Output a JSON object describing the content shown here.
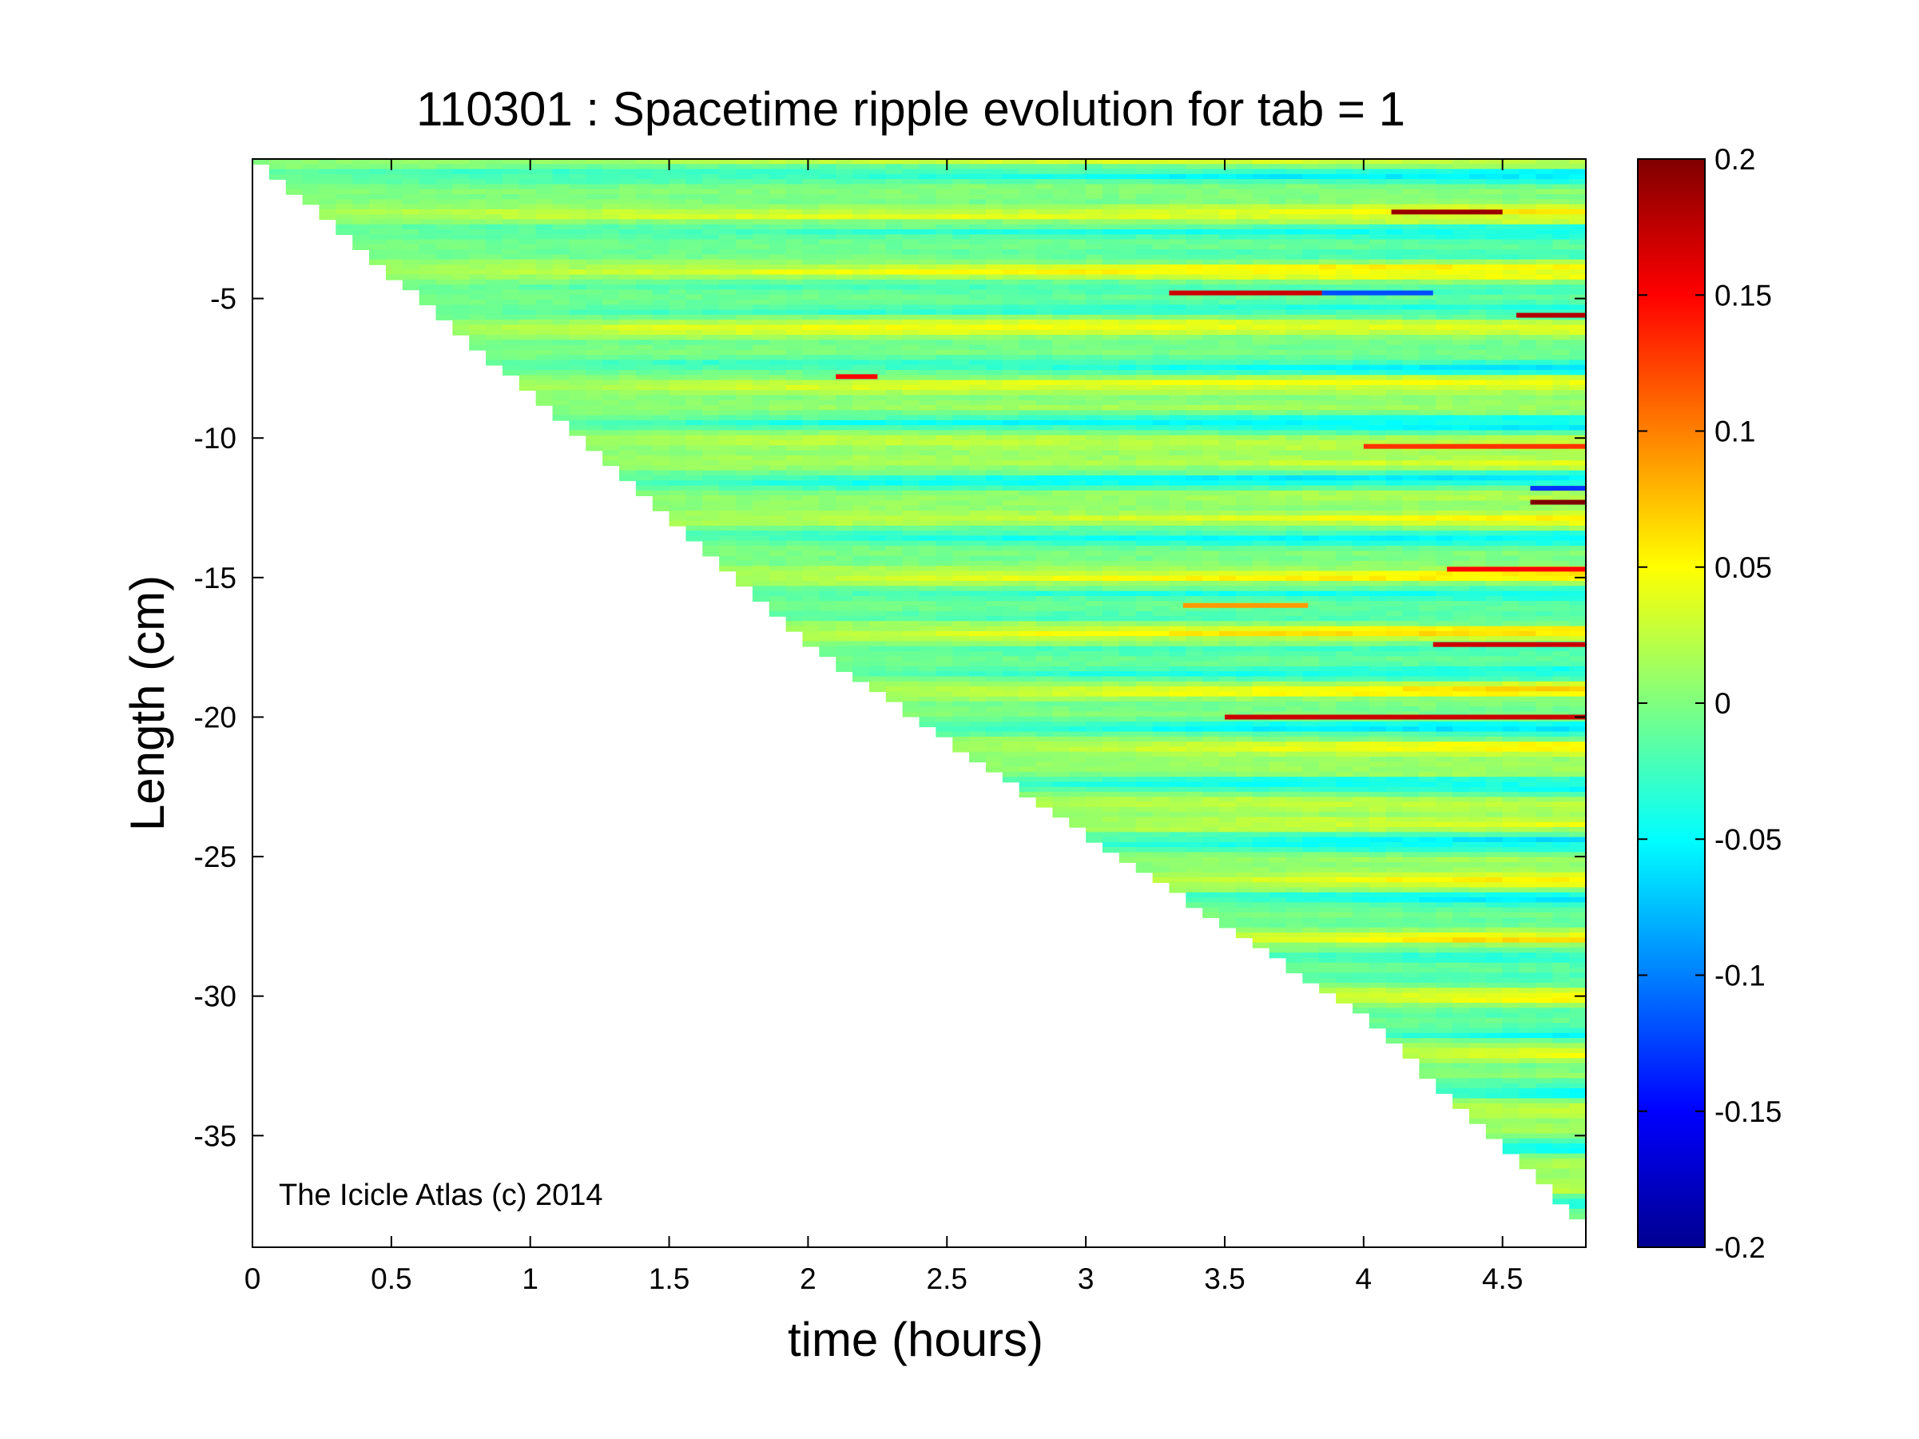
{
  "chart_data": {
    "type": "heatmap",
    "title": "110301 : Spacetime ripple evolution for tab = 1",
    "xlabel": "time (hours)",
    "ylabel": "Length (cm)",
    "annotation": "The Icicle Atlas (c) 2014",
    "xlim": [
      0,
      4.8
    ],
    "ylim": [
      -39,
      0
    ],
    "xticks": [
      0,
      0.5,
      1,
      1.5,
      2,
      2.5,
      3,
      3.5,
      4,
      4.5
    ],
    "xtick_labels": [
      "0",
      "0.5",
      "1",
      "1.5",
      "2",
      "2.5",
      "3",
      "3.5",
      "4",
      "4.5"
    ],
    "yticks": [
      -5,
      -10,
      -15,
      -20,
      -25,
      -30,
      -35
    ],
    "ytick_labels": [
      "-5",
      "-10",
      "-15",
      "-20",
      "-25",
      "-30",
      "-35"
    ],
    "colorbar": {
      "colormap": "jet",
      "clim": [
        -0.2,
        0.2
      ],
      "ticks": [
        0.2,
        0.15,
        0.1,
        0.05,
        0,
        -0.05,
        -0.1,
        -0.15,
        -0.2
      ],
      "tick_labels": [
        "0.2",
        "0.15",
        "0.1",
        "0.05",
        "0",
        "-0.05",
        "-0.1",
        "-0.15",
        "-0.2"
      ]
    },
    "growth_front": [
      [
        0,
        0
      ],
      [
        1,
        -8.5
      ],
      [
        2,
        -17.5
      ],
      [
        3,
        -24.3
      ],
      [
        4,
        -30.8
      ],
      [
        4.8,
        -38.3
      ]
    ],
    "grid": false
  }
}
